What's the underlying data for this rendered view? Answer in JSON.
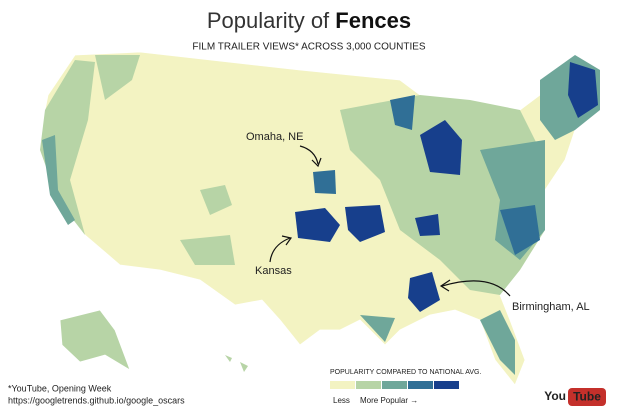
{
  "title": {
    "prefix": "Popularity of",
    "emphasis": "Fences"
  },
  "subtitle": "FILM TRAILER VIEWS* ACROSS 3,000 COUNTIES",
  "annotations": [
    "Omaha, NE",
    "Kansas",
    "Birmingham, AL"
  ],
  "legend": {
    "title": "POPULARITY COMPARED TO NATIONAL AVG.",
    "low": "Less",
    "high": "More Popular →",
    "colors": [
      "#f3f3c2",
      "#b7d4a6",
      "#6fa79a",
      "#306f96",
      "#173f8c"
    ]
  },
  "footnote": {
    "source": "*YouTube, Opening Week",
    "url": "https://googletrends.github.io/google_oscars"
  },
  "logo": {
    "you": "You",
    "tube": "Tube"
  }
}
